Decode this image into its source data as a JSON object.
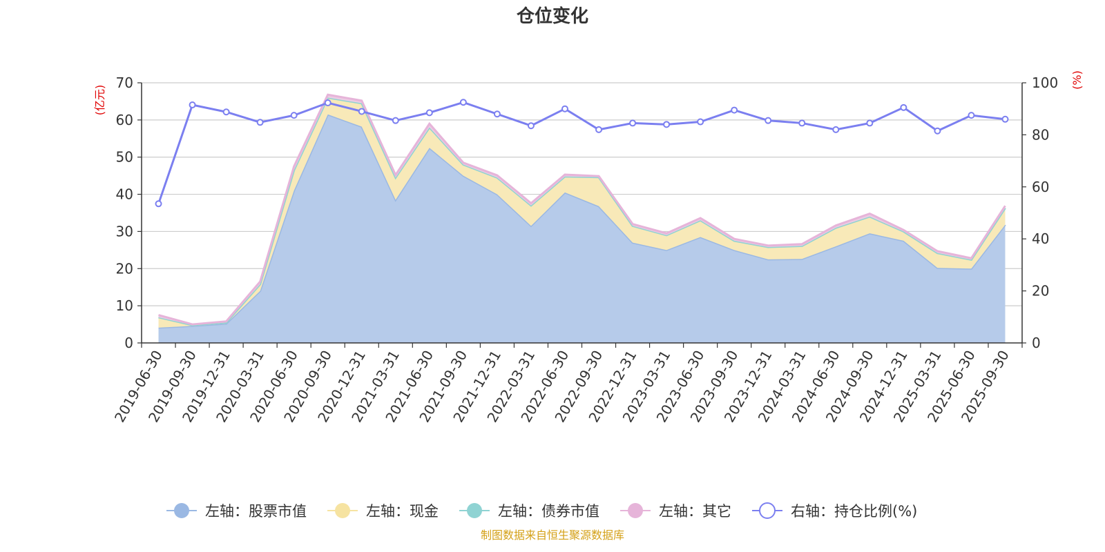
{
  "chart_data": {
    "type": "area",
    "title": "仓位变化",
    "left_axis_unit": "(亿元)",
    "right_axis_unit": "(%)",
    "categories": [
      "2019-06-30",
      "2019-09-30",
      "2019-12-31",
      "2020-03-31",
      "2020-06-30",
      "2020-09-30",
      "2020-12-31",
      "2021-03-31",
      "2021-06-30",
      "2021-09-30",
      "2021-12-31",
      "2022-03-31",
      "2022-06-30",
      "2022-09-30",
      "2022-12-31",
      "2023-03-31",
      "2023-06-30",
      "2023-09-30",
      "2023-12-31",
      "2024-03-31",
      "2024-06-30",
      "2024-09-30",
      "2024-12-31",
      "2025-03-31",
      "2025-06-30",
      "2025-09-30"
    ],
    "left_ylim": [
      0,
      70
    ],
    "left_ticks": [
      0,
      10,
      20,
      30,
      40,
      50,
      60,
      70
    ],
    "right_ylim": [
      0,
      100
    ],
    "right_ticks": [
      0,
      20,
      40,
      60,
      80,
      100
    ],
    "stacked_series": [
      {
        "name": "左轴：股票市值",
        "color": "#9ab8e3",
        "fill": "#b6cbea",
        "values": [
          4.1,
          4.6,
          5.2,
          14.0,
          41.0,
          61.5,
          58.2,
          38.5,
          52.5,
          45.0,
          40.0,
          31.5,
          40.5,
          36.8,
          27.0,
          25.0,
          28.5,
          25.0,
          22.5,
          22.6,
          26.0,
          29.5,
          27.5,
          20.2,
          20.0,
          31.8
        ]
      },
      {
        "name": "左轴：现金",
        "color": "#f6e3a1",
        "fill": "#f8e9b8",
        "values": [
          2.8,
          0.2,
          0.3,
          1.8,
          5.5,
          4.5,
          6.3,
          6.0,
          5.5,
          3.0,
          4.5,
          5.5,
          4.3,
          7.8,
          4.5,
          4.0,
          4.5,
          2.5,
          3.3,
          3.5,
          5.0,
          4.5,
          2.5,
          4.0,
          2.4,
          4.5
        ]
      },
      {
        "name": "左轴：债券市值",
        "color": "#8fd3d3",
        "fill": "#b3e3e3",
        "values": [
          0,
          0,
          0,
          0,
          0,
          0,
          0,
          0,
          0,
          0,
          0,
          0,
          0,
          0,
          0,
          0,
          0,
          0,
          0,
          0,
          0,
          0,
          0,
          0,
          0,
          0
        ]
      },
      {
        "name": "左轴：其它",
        "color": "#e6b4d9",
        "fill": "#eccce3",
        "values": [
          0.6,
          0.2,
          0.3,
          0.7,
          1.0,
          0.8,
          0.7,
          0.7,
          1.0,
          0.5,
          0.6,
          0.6,
          0.5,
          0.3,
          0.5,
          0.5,
          0.6,
          0.5,
          0.4,
          0.5,
          0.6,
          0.8,
          0.4,
          0.5,
          0.4,
          0.6
        ]
      }
    ],
    "line_series": {
      "name": "右轴：持仓比例(%)",
      "color": "#7b7ff0",
      "values": [
        53.5,
        91.5,
        88.8,
        84.8,
        87.5,
        92.3,
        89.0,
        85.5,
        88.5,
        92.5,
        88.0,
        83.5,
        90.0,
        82.0,
        84.5,
        84.0,
        85.0,
        89.5,
        85.5,
        84.5,
        82.0,
        84.5,
        90.5,
        81.5,
        87.5,
        86.0
      ]
    },
    "legend": [
      {
        "label": "左轴：股票市值",
        "color": "#9ab8e3",
        "hollow": false
      },
      {
        "label": "左轴：现金",
        "color": "#f6e3a1",
        "hollow": false
      },
      {
        "label": "左轴：债券市值",
        "color": "#8fd3d3",
        "hollow": false
      },
      {
        "label": "左轴：其它",
        "color": "#e6b4d9",
        "hollow": false
      },
      {
        "label": "右轴：持仓比例(%)",
        "color": "#7b7ff0",
        "hollow": true
      }
    ],
    "legend_position": "bottom",
    "grid": true,
    "source": "制图数据来自恒生聚源数据库"
  }
}
